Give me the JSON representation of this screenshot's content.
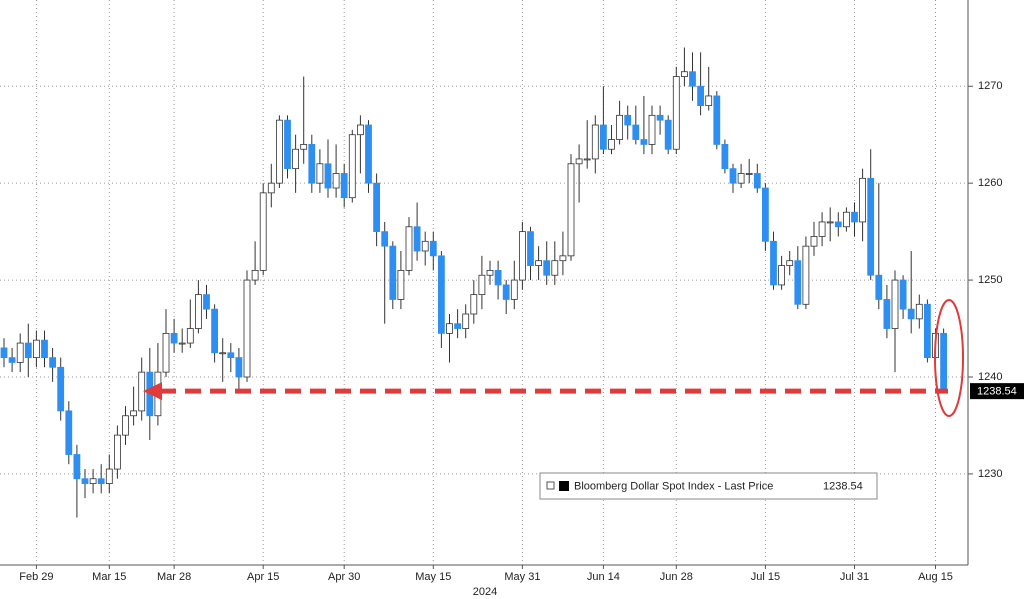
{
  "chart_data": {
    "type": "candlestick",
    "categories": [
      null,
      null,
      null,
      null,
      "Feb 29",
      null,
      null,
      null,
      null,
      null,
      null,
      null,
      null,
      "Mar 15",
      null,
      null,
      null,
      null,
      null,
      null,
      null,
      "Mar 28",
      null,
      null,
      null,
      null,
      null,
      null,
      null,
      null,
      null,
      null,
      "Apr 15",
      null,
      null,
      null,
      null,
      null,
      null,
      null,
      null,
      null,
      "Apr 30",
      null,
      null,
      null,
      null,
      null,
      null,
      null,
      null,
      null,
      null,
      "May 15",
      null,
      null,
      null,
      null,
      null,
      null,
      null,
      null,
      null,
      null,
      "May 31",
      null,
      null,
      null,
      null,
      null,
      null,
      null,
      null,
      null,
      "Jun 14",
      null,
      null,
      null,
      null,
      null,
      null,
      null,
      null,
      "Jun 28",
      null,
      null,
      null,
      null,
      null,
      null,
      null,
      null,
      null,
      null,
      "Jul 15",
      null,
      null,
      null,
      null,
      null,
      null,
      null,
      null,
      null,
      null,
      "Jul 31",
      null,
      null,
      null,
      null,
      null,
      null,
      null,
      null,
      null,
      "Aug 15",
      null
    ],
    "x_label": "2024",
    "series": [
      {
        "name": "Bloomberg Dollar Spot Index - Last Price",
        "up_color": "#ffffff",
        "down_color": "#2e8ff0",
        "open": [
          1243,
          1242,
          1241.5,
          1243.5,
          1242,
          1243.8,
          1242,
          1241,
          1236.5,
          1232,
          1229.5,
          1229,
          1229.5,
          1229,
          1230.5,
          1234,
          1236,
          1236.5,
          1240.5,
          1236,
          1240.5,
          1244.5,
          1243.5,
          1243.5,
          1245,
          1248.5,
          1247,
          1242.5,
          1242.5,
          1242,
          1240,
          1250,
          1251,
          1259,
          1260,
          1266.5,
          1261.5,
          1263.5,
          1264,
          1260,
          1262,
          1259.5,
          1261,
          1258.5,
          1265,
          1266,
          1260,
          1255,
          1253.5,
          1248,
          1251,
          1255.5,
          1253,
          1254,
          1252.5,
          1244.5,
          1245.5,
          1245,
          1246.5,
          1248.5,
          1250.5,
          1251,
          1249.5,
          1248,
          1250,
          1255,
          1251.5,
          1252,
          1250.5,
          1252,
          1252.5,
          1262,
          1262.5,
          1262.5,
          1266,
          1263.5,
          1264.5,
          1267,
          1266,
          1264.5,
          1264,
          1267,
          1266.5,
          1263.5,
          1271,
          1271.5,
          1270,
          1268,
          1269,
          1264,
          1261.5,
          1260,
          1261,
          1261,
          1259.5,
          1254,
          1249.5,
          1251.5,
          1252,
          1247.5,
          1253.5,
          1254.5,
          1256,
          1256,
          1255.5,
          1257,
          1256,
          1260.5,
          1250.5,
          1248,
          1245,
          1250,
          1247,
          1246,
          1247.5,
          1242,
          1244.5
        ],
        "high": [
          1244,
          1243,
          1244.5,
          1245.5,
          1244.8,
          1244.8,
          1243,
          1242,
          1237.5,
          1233,
          1230.5,
          1230.5,
          1231,
          1232,
          1235,
          1237,
          1239,
          1242,
          1243,
          1243.5,
          1247,
          1246,
          1245,
          1248,
          1250,
          1249.5,
          1247.5,
          1244,
          1243.5,
          1243,
          1251,
          1254,
          1260,
          1262,
          1267,
          1267,
          1265,
          1271,
          1265,
          1263.5,
          1264.5,
          1264,
          1262,
          1265.5,
          1267,
          1266.5,
          1261,
          1256,
          1254,
          1253,
          1256.5,
          1258,
          1255,
          1255,
          1253,
          1246.5,
          1247,
          1247.5,
          1250,
          1252.5,
          1252,
          1252,
          1250,
          1252,
          1256,
          1255.5,
          1253.5,
          1254,
          1254,
          1255,
          1263,
          1264,
          1266.5,
          1267,
          1270,
          1266,
          1268.5,
          1268,
          1268,
          1269,
          1268,
          1268,
          1267,
          1272,
          1274,
          1273.5,
          1273.5,
          1272,
          1269.5,
          1264.5,
          1262,
          1262,
          1262.5,
          1262,
          1260,
          1255,
          1252.5,
          1253,
          1253.5,
          1254.5,
          1256,
          1257,
          1257.5,
          1257,
          1257.5,
          1258,
          1261.5,
          1263.5,
          1260,
          1249.5,
          1251,
          1250.5,
          1253,
          1248.5,
          1248,
          1245,
          1245
        ],
        "low": [
          1241,
          1240.5,
          1240.5,
          1240,
          1241,
          1241,
          1239.5,
          1235.5,
          1231,
          1225.5,
          1227.5,
          1228,
          1228,
          1228,
          1229.5,
          1233,
          1235,
          1235.5,
          1233.5,
          1235,
          1240,
          1242.5,
          1242.5,
          1243,
          1244.5,
          1246,
          1241.5,
          1239.5,
          1240.5,
          1238.5,
          1239.5,
          1249.5,
          1250.5,
          1257.5,
          1259.5,
          1260.5,
          1259,
          1262,
          1259,
          1259,
          1258.5,
          1258.5,
          1257.5,
          1258,
          1261,
          1259,
          1253.5,
          1245.5,
          1247,
          1247,
          1250.5,
          1252,
          1251.5,
          1251,
          1243,
          1241.5,
          1244,
          1244,
          1245.5,
          1247,
          1249.5,
          1248,
          1246.5,
          1247,
          1249,
          1250,
          1250,
          1249.5,
          1249.5,
          1250.5,
          1252,
          1258,
          1261.5,
          1261,
          1263,
          1263,
          1264,
          1264.5,
          1264,
          1263,
          1263,
          1265,
          1263,
          1263,
          1270,
          1268.5,
          1267,
          1267.5,
          1263.5,
          1261,
          1259,
          1259.5,
          1260,
          1259,
          1253,
          1249,
          1249,
          1250.5,
          1247,
          1247,
          1252.5,
          1253.5,
          1254,
          1254.5,
          1255,
          1254.5,
          1254,
          1250,
          1247,
          1244,
          1240.5,
          1246,
          1244.5,
          1245,
          1241.5,
          1241,
          1238.3
        ],
        "close": [
          1242,
          1241.5,
          1243.5,
          1242,
          1243.8,
          1242,
          1241,
          1236.5,
          1232,
          1229.5,
          1229,
          1229.5,
          1229,
          1230.5,
          1234,
          1236,
          1236.5,
          1240.5,
          1236,
          1240.5,
          1244.5,
          1243.5,
          1243.5,
          1245,
          1248.5,
          1247,
          1242.5,
          1242.5,
          1242,
          1240,
          1250,
          1251,
          1259,
          1260,
          1266.5,
          1261.5,
          1263.5,
          1264,
          1260,
          1262,
          1259.5,
          1261,
          1258.5,
          1265,
          1266,
          1260,
          1255,
          1253.5,
          1248,
          1251,
          1255.5,
          1253,
          1254,
          1252.5,
          1244.5,
          1245.5,
          1245,
          1246.5,
          1248.5,
          1250.5,
          1251,
          1249.5,
          1248,
          1250,
          1255,
          1251.5,
          1252,
          1250.5,
          1252,
          1252.5,
          1262,
          1262.5,
          1262.5,
          1266,
          1263.5,
          1264.5,
          1267,
          1266,
          1264.5,
          1264,
          1267,
          1266.5,
          1263.5,
          1271,
          1271.5,
          1270,
          1268,
          1269,
          1264,
          1261.5,
          1260,
          1261,
          1261,
          1259.5,
          1254,
          1249.5,
          1251.5,
          1252,
          1247.5,
          1253.5,
          1254.5,
          1256,
          1256,
          1255.5,
          1257,
          1256,
          1260.5,
          1250.5,
          1248,
          1245,
          1250,
          1247,
          1246,
          1247.5,
          1242,
          1244.5,
          1238.54
        ]
      }
    ],
    "last_price": 1238.54,
    "annotation_color": "#e03a3a",
    "ylim": [
      1220.6,
      1278.9
    ],
    "yticks": [
      1230,
      1240,
      1250,
      1260,
      1270
    ],
    "grid": true
  }
}
